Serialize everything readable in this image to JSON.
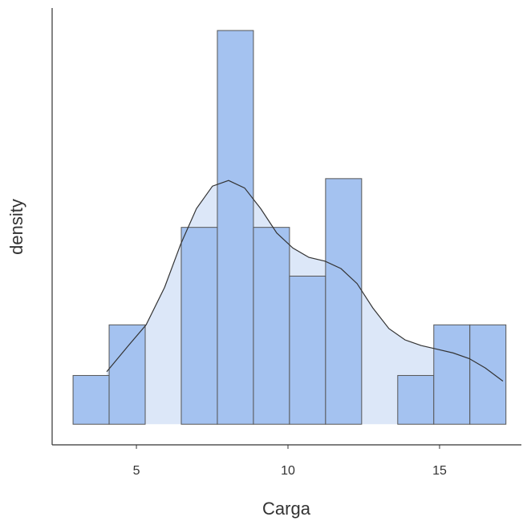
{
  "chart_data": {
    "type": "histogram",
    "x_label": "Carga",
    "y_label": "density",
    "bins": [
      2.91,
      4.1,
      5.29,
      6.48,
      7.67,
      8.86,
      10.05,
      11.24,
      12.43,
      13.62,
      14.81,
      16.0,
      17.19
    ],
    "values": [
      0.026,
      0.053,
      0,
      0.105,
      0.21,
      0.105,
      0.079,
      0.131,
      0,
      0.026,
      0.053,
      0.053
    ],
    "color": "#a4c2f0",
    "edge_color": "#555555",
    "density": {
      "color": "#333333",
      "fill": "#dce7f8",
      "x": [
        4.02,
        4.74,
        5.32,
        5.93,
        6.46,
        6.98,
        7.51,
        8.04,
        8.57,
        9.1,
        9.63,
        10.16,
        10.69,
        11.22,
        11.75,
        12.28,
        12.8,
        13.33,
        13.86,
        14.39,
        14.92,
        15.45,
        15.98,
        16.51,
        17.09
      ],
      "y": [
        0.028,
        0.042,
        0.053,
        0.073,
        0.096,
        0.115,
        0.127,
        0.13,
        0.126,
        0.115,
        0.102,
        0.094,
        0.089,
        0.087,
        0.083,
        0.075,
        0.062,
        0.051,
        0.045,
        0.042,
        0.04,
        0.038,
        0.035,
        0.03,
        0.023
      ]
    },
    "xlim": [
      2.22,
      17.7
    ],
    "xticks": [
      5,
      10,
      15
    ],
    "ylim": [
      -0.011,
      0.222
    ]
  }
}
